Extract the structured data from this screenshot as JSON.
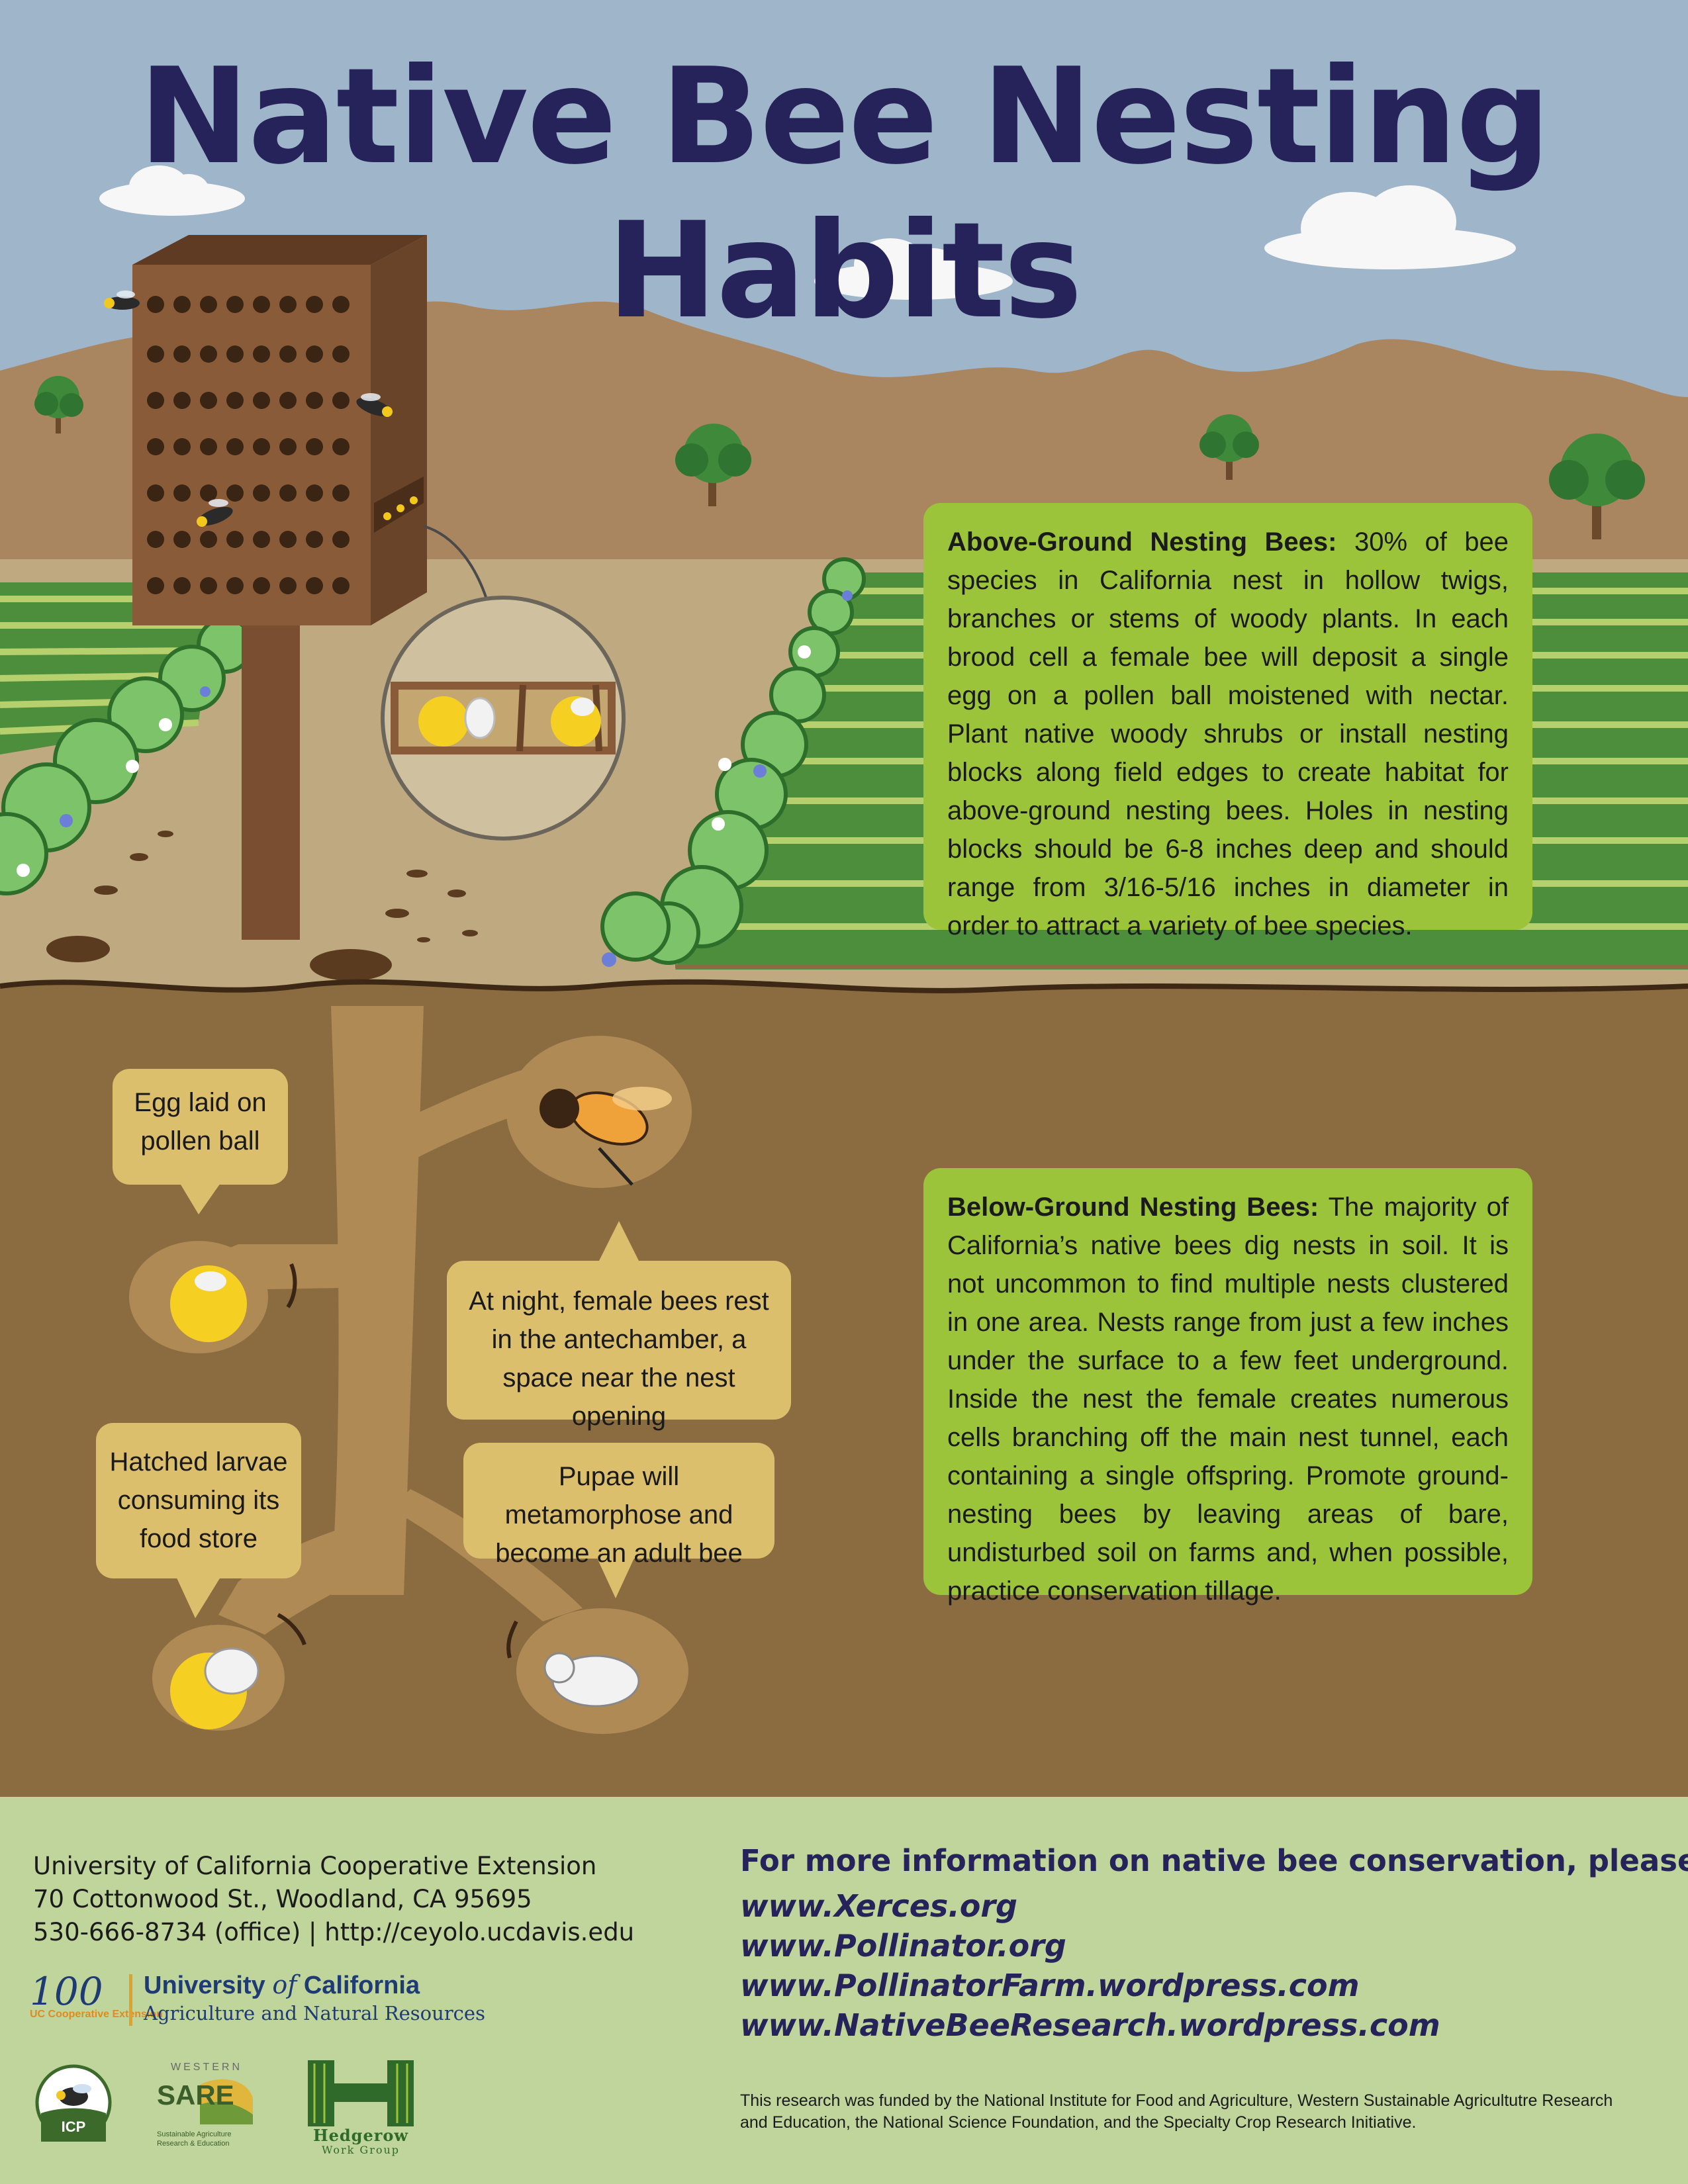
{
  "title": "Native Bee Nesting Habits",
  "above_ground": {
    "heading": "Above-Ground Nesting Bees:",
    "text": "30% of bee species in California nest in hollow twigs, branches or stems of woody plants. In each brood cell a female bee will deposit a single egg on a pollen ball moistened with nectar. Plant native woody shrubs or install nesting blocks along field edges to create habitat for above-ground nesting bees. Holes in nesting blocks should be 6-8 inches deep and should range from 3/16-5/16 inches in diameter in order to attract a variety of bee species."
  },
  "below_ground": {
    "heading": "Below-Ground Nesting Bees:",
    "text": "The majority of California’s native bees dig nests in soil. It is not uncommon to find multiple nests clustered in one area. Nests range from just a few inches under the surface to a few feet underground. Inside the nest the female creates numerous cells branching off the main nest tunnel, each containing a single offspring. Promote ground-nesting bees by leaving areas of bare, undisturbed soil on farms and, when possible, practice conservation tillage."
  },
  "callouts": {
    "egg": "Egg laid on pollen ball",
    "night": "At night, female bees rest in the antechamber, a space near the nest opening",
    "larvae": "Hatched larvae consuming its food store",
    "pupae": "Pupae will metamorphose and become an adult bee"
  },
  "footer": {
    "address": [
      "University of California Cooperative Extension",
      "70 Cottonwood St., Woodland, CA  95695",
      "530-666-8734 (office) | http://ceyolo.ucdavis.edu"
    ],
    "more_info": "For more information on native bee conservation, please visit:",
    "links": [
      "www.Xerces.org",
      "www.Pollinator.org",
      "www.PollinatorFarm.wordpress.com",
      "www.NativeBeeResearch.wordpress.com"
    ],
    "funding": "This research was funded by the National Institute for Food and Agriculture, Western Sustainable Agricultutre Research and Education, the National Science Foundation, and the Specialty Crop Research Initiative.",
    "uc_logo": {
      "mark": "100",
      "mark_sub": "UC Cooperative Extension",
      "name_a": "University ",
      "name_of": "of",
      "name_b": " California",
      "sub": "Agriculture and Natural Resources"
    },
    "icp_logo": "ICP",
    "sare_logo": {
      "top": "WESTERN",
      "name": "SARE",
      "sub1": "Sustainable Agriculture",
      "sub2": "Research & Education"
    },
    "hedgerow_logo": {
      "name": "Hedgerow",
      "sub": "Work Group"
    }
  },
  "colors": {
    "sky": "#9fb5c9",
    "title": "#25235a",
    "mountain": "#a98660",
    "field_ground": "#bfa980",
    "soil": "#8a6c40",
    "tunnel": "#b08a55",
    "infobox": "#9cc43b",
    "callout": "#dcbf6c",
    "footer": "#bfd59b"
  }
}
